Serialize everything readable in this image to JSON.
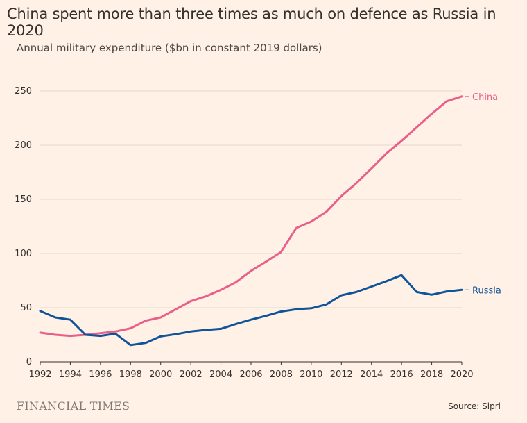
{
  "title": "China spent more than three times as much on defence as Russia in 2020",
  "subtitle": "Annual military expenditure ($bn in constant 2019 dollars)",
  "footer": {
    "logo": "FINANCIAL TIMES",
    "source": "Source: Sipri"
  },
  "colors": {
    "background": "#fff1e5",
    "china": "#e8608a",
    "russia": "#0f5499",
    "grid": "#e3d6cb",
    "axis": "#33302e"
  },
  "chart_data": {
    "type": "line",
    "x": [
      1992,
      1993,
      1994,
      1995,
      1996,
      1997,
      1998,
      1999,
      2000,
      2001,
      2002,
      2003,
      2004,
      2005,
      2006,
      2007,
      2008,
      2009,
      2010,
      2011,
      2012,
      2013,
      2014,
      2015,
      2016,
      2017,
      2018,
      2019,
      2020
    ],
    "series": [
      {
        "name": "China",
        "color": "#e8608a",
        "values": [
          27,
          25,
          24,
          25,
          26.5,
          28,
          31,
          38,
          41,
          48.5,
          56,
          60.5,
          66.5,
          73.5,
          84,
          92.5,
          101.5,
          123.5,
          129.5,
          138.5,
          153,
          165,
          178.5,
          192.5,
          204,
          216.5,
          229,
          240.5,
          245
        ]
      },
      {
        "name": "Russia",
        "color": "#0f5499",
        "values": [
          47,
          41,
          39,
          25,
          24,
          26,
          15.5,
          17.5,
          23.5,
          25.5,
          28,
          29.5,
          30.5,
          35,
          39,
          42.5,
          46.5,
          48.5,
          49.5,
          53,
          61.5,
          64.5,
          69.5,
          74.5,
          80,
          64.5,
          62,
          65,
          66.5
        ]
      }
    ],
    "xlim": [
      1992,
      2020
    ],
    "ylim": [
      0,
      250
    ],
    "x_ticks": [
      "1992",
      "1994",
      "1996",
      "1998",
      "2000",
      "2002",
      "2004",
      "2006",
      "2008",
      "2010",
      "2012",
      "2014",
      "2016",
      "2018",
      "2020"
    ],
    "y_ticks": [
      "0",
      "50",
      "100",
      "150",
      "200",
      "250"
    ],
    "grid": true,
    "legend": "inline labels at line ends (right)"
  }
}
